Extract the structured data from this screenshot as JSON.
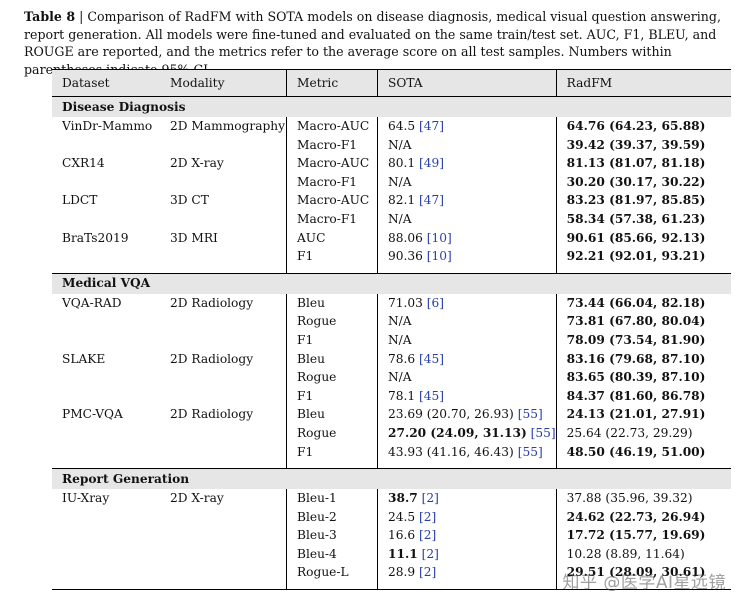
{
  "caption": {
    "label": "Table 8",
    "text": " | Comparison of RadFM with SOTA models on disease diagnosis, medical visual question answering, report generation. All models were fine-tuned and evaluated on the same train/test set. AUC, F1, BLEU, and ROUGE are reported, and the metrics refer to the average score on all test samples. Numbers within parentheses indicate 95% CI."
  },
  "headers": [
    "Dataset",
    "Modality",
    "Metric",
    "SOTA",
    "RadFM"
  ],
  "sections": [
    {
      "title": "Disease Diagnosis",
      "rows": [
        {
          "dataset": "VinDr-Mammo",
          "modality": "2D Mammography",
          "metric": "Macro-AUC",
          "sota": "64.5",
          "sota_ref": "[47]",
          "sota_bold": false,
          "radfm": "64.76 (64.23, 65.88)",
          "radfm_bold": true
        },
        {
          "dataset": "",
          "modality": "",
          "metric": "Macro-F1",
          "sota": "N/A",
          "sota_ref": "",
          "sota_bold": false,
          "radfm": "39.42 (39.37, 39.59)",
          "radfm_bold": true
        },
        {
          "dataset": "CXR14",
          "modality": "2D X-ray",
          "metric": "Macro-AUC",
          "sota": "80.1",
          "sota_ref": "[49]",
          "sota_bold": false,
          "radfm": "81.13 (81.07, 81.18)",
          "radfm_bold": true
        },
        {
          "dataset": "",
          "modality": "",
          "metric": "Macro-F1",
          "sota": "N/A",
          "sota_ref": "",
          "sota_bold": false,
          "radfm": "30.20 (30.17, 30.22)",
          "radfm_bold": true
        },
        {
          "dataset": "LDCT",
          "modality": "3D CT",
          "metric": "Macro-AUC",
          "sota": "82.1",
          "sota_ref": "[47]",
          "sota_bold": false,
          "radfm": "83.23 (81.97, 85.85)",
          "radfm_bold": true
        },
        {
          "dataset": "",
          "modality": "",
          "metric": "Macro-F1",
          "sota": "N/A",
          "sota_ref": "",
          "sota_bold": false,
          "radfm": "58.34 (57.38, 61.23)",
          "radfm_bold": true
        },
        {
          "dataset": "BraTs2019",
          "modality": "3D MRI",
          "metric": "AUC",
          "sota": "88.06",
          "sota_ref": "[10]",
          "sota_bold": false,
          "radfm": "90.61 (85.66, 92.13)",
          "radfm_bold": true
        },
        {
          "dataset": "",
          "modality": "",
          "metric": "F1",
          "sota": "90.36",
          "sota_ref": "[10]",
          "sota_bold": false,
          "radfm": "92.21 (92.01, 93.21)",
          "radfm_bold": true
        }
      ]
    },
    {
      "title": "Medical VQA",
      "rows": [
        {
          "dataset": "VQA-RAD",
          "modality": "2D Radiology",
          "metric": "Bleu",
          "sota": "71.03",
          "sota_ref": "[6]",
          "sota_bold": false,
          "radfm": "73.44 (66.04, 82.18)",
          "radfm_bold": true
        },
        {
          "dataset": "",
          "modality": "",
          "metric": "Rogue",
          "sota": "N/A",
          "sota_ref": "",
          "sota_bold": false,
          "radfm": "73.81 (67.80, 80.04)",
          "radfm_bold": true
        },
        {
          "dataset": "",
          "modality": "",
          "metric": "F1",
          "sota": "N/A",
          "sota_ref": "",
          "sota_bold": false,
          "radfm": "78.09 (73.54, 81.90)",
          "radfm_bold": true
        },
        {
          "dataset": "SLAKE",
          "modality": "2D Radiology",
          "metric": "Bleu",
          "sota": "78.6",
          "sota_ref": "[45]",
          "sota_bold": false,
          "radfm": "83.16 (79.68, 87.10)",
          "radfm_bold": true
        },
        {
          "dataset": "",
          "modality": "",
          "metric": "Rogue",
          "sota": "N/A",
          "sota_ref": "",
          "sota_bold": false,
          "radfm": "83.65 (80.39, 87.10)",
          "radfm_bold": true
        },
        {
          "dataset": "",
          "modality": "",
          "metric": "F1",
          "sota": "78.1",
          "sota_ref": "[45]",
          "sota_bold": false,
          "radfm": "84.37 (81.60, 86.78)",
          "radfm_bold": true
        },
        {
          "dataset": "PMC-VQA",
          "modality": "2D Radiology",
          "metric": "Bleu",
          "sota": "23.69 (20.70, 26.93)",
          "sota_ref": "[55]",
          "sota_bold": false,
          "radfm": "24.13 (21.01, 27.91)",
          "radfm_bold": true
        },
        {
          "dataset": "",
          "modality": "",
          "metric": "Rogue",
          "sota": "27.20 (24.09, 31.13)",
          "sota_ref": "[55]",
          "sota_bold": true,
          "radfm": "25.64 (22.73, 29.29)",
          "radfm_bold": false
        },
        {
          "dataset": "",
          "modality": "",
          "metric": "F1",
          "sota": "43.93 (41.16, 46.43)",
          "sota_ref": "[55]",
          "sota_bold": false,
          "radfm": "48.50 (46.19, 51.00)",
          "radfm_bold": true
        }
      ]
    },
    {
      "title": "Report Generation",
      "rows": [
        {
          "dataset": "IU-Xray",
          "modality": "2D X-ray",
          "metric": "Bleu-1",
          "sota": "38.7",
          "sota_ref": "[2]",
          "sota_bold": true,
          "radfm": "37.88 (35.96, 39.32)",
          "radfm_bold": false
        },
        {
          "dataset": "",
          "modality": "",
          "metric": "Bleu-2",
          "sota": "24.5",
          "sota_ref": "[2]",
          "sota_bold": false,
          "radfm": "24.62 (22.73, 26.94)",
          "radfm_bold": true
        },
        {
          "dataset": "",
          "modality": "",
          "metric": "Bleu-3",
          "sota": "16.6",
          "sota_ref": "[2]",
          "sota_bold": false,
          "radfm": "17.72 (15.77, 19.69)",
          "radfm_bold": true
        },
        {
          "dataset": "",
          "modality": "",
          "metric": "Bleu-4",
          "sota": "11.1",
          "sota_ref": "[2]",
          "sota_bold": true,
          "radfm": "10.28 (8.89, 11.64)",
          "radfm_bold": false
        },
        {
          "dataset": "",
          "modality": "",
          "metric": "Rogue-L",
          "sota": "28.9",
          "sota_ref": "[2]",
          "sota_bold": false,
          "radfm": "29.51 (28.09, 30.61)",
          "radfm_bold": true
        }
      ]
    }
  ],
  "watermark": "知乎 @医学AI星远镜",
  "colors": {
    "header_bg": "#e6e6e6",
    "ref": "#2a3fa8"
  }
}
